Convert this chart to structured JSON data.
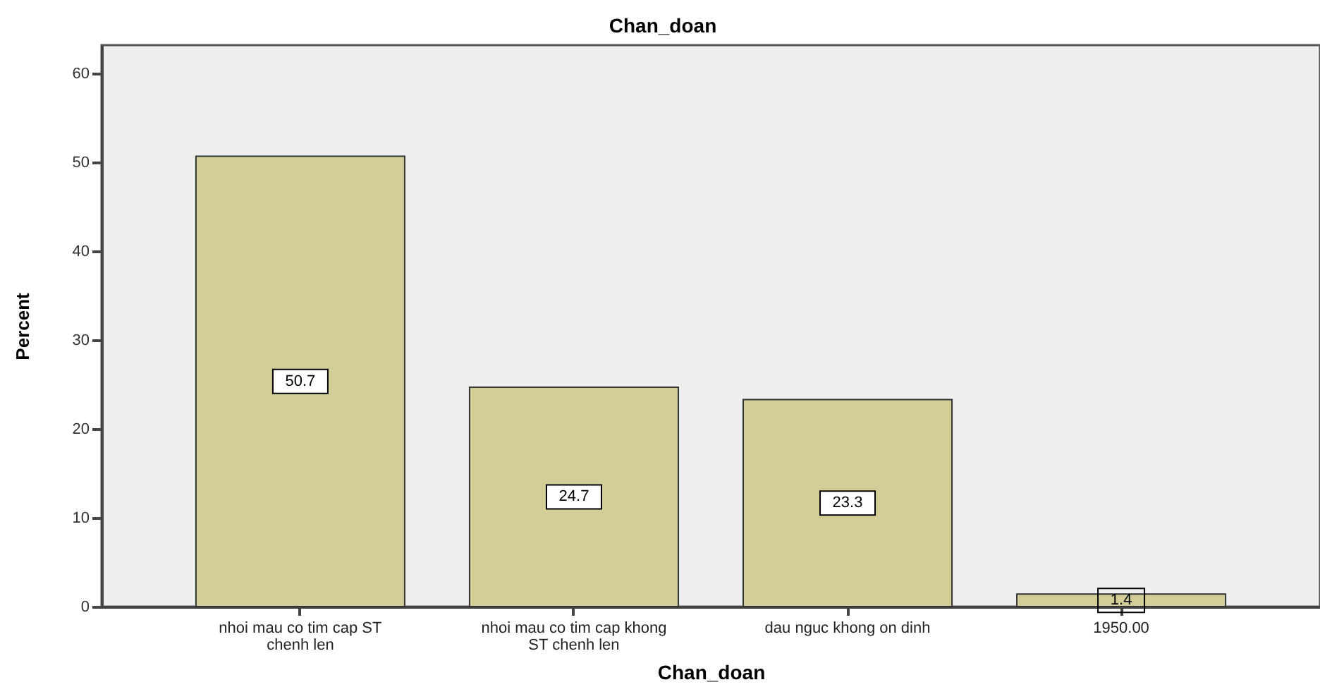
{
  "chart_data": {
    "type": "bar",
    "title": "Chan_doan",
    "xlabel": "Chan_doan",
    "ylabel": "Percent",
    "categories": [
      "nhoi mau co tim cap ST chenh len",
      "nhoi mau co tim cap khong ST chenh len",
      "dau nguc khong on dinh",
      "1950.00"
    ],
    "values": [
      50.7,
      24.7,
      23.3,
      1.4
    ],
    "color": "#d3ce97",
    "ylim": [
      0,
      63.2
    ],
    "yticks": [
      0,
      10,
      20,
      30,
      40,
      50,
      60
    ],
    "grid": false,
    "data_labels": true
  }
}
